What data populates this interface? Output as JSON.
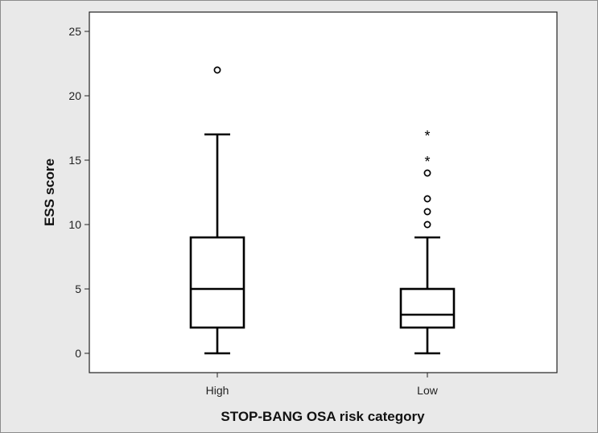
{
  "chart_data": {
    "type": "boxplot",
    "title": "",
    "xlabel": "STOP-BANG OSA risk category",
    "ylabel": "ESS score",
    "ylim": [
      -1.5,
      26.5
    ],
    "yticks": [
      0,
      5,
      10,
      15,
      20,
      25
    ],
    "grid": false,
    "categories": [
      "High",
      "Low"
    ],
    "boxes": [
      {
        "category": "High",
        "whisker_low": 0,
        "q1": 2,
        "median": 5,
        "q3": 9,
        "whisker_high": 17,
        "outliers": [
          22
        ],
        "extremes": []
      },
      {
        "category": "Low",
        "whisker_low": 0,
        "q1": 2,
        "median": 3,
        "q3": 5,
        "whisker_high": 9,
        "outliers": [
          10,
          11,
          12,
          14
        ],
        "extremes": [
          15,
          17
        ]
      }
    ],
    "colors": {
      "figure_bg": "#e9e9e9",
      "plot_bg": "#ffffff",
      "ink": "#000000"
    }
  }
}
